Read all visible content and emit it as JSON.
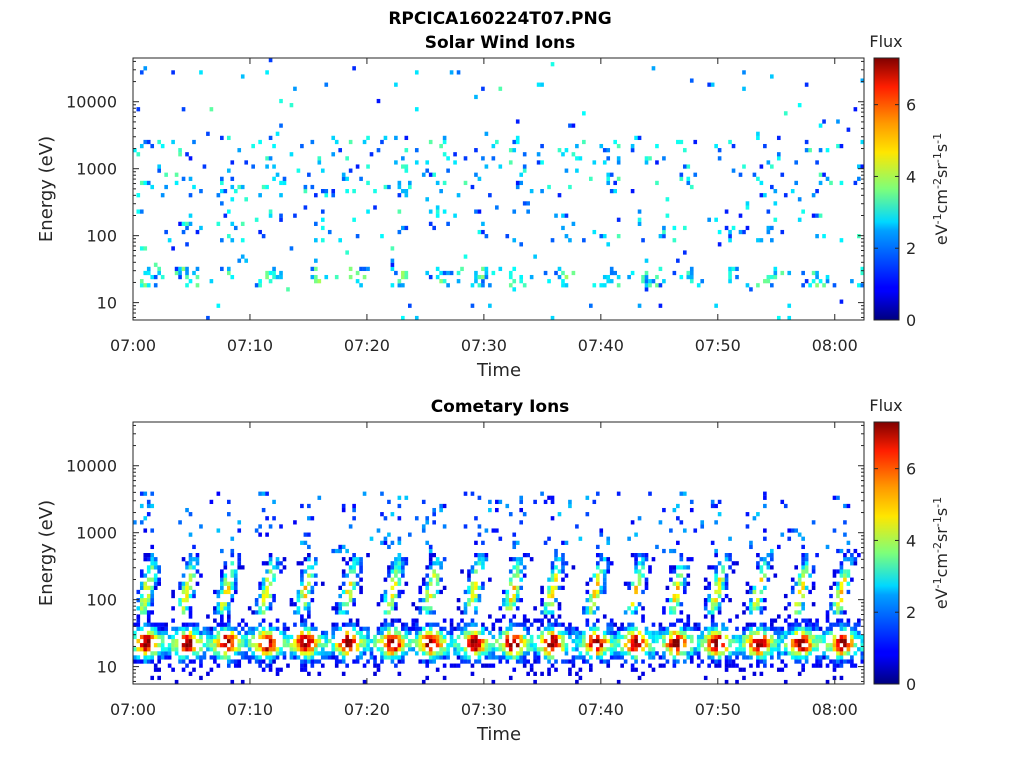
{
  "figure": {
    "title": "RPCICA160224T07.PNG"
  },
  "colormap": "jet",
  "chart_data": [
    {
      "type": "heatmap",
      "title": "Solar Wind Ions",
      "xlabel": "Time",
      "ylabel": "Energy (eV)",
      "x_ticks": [
        "07:00",
        "07:10",
        "07:20",
        "07:30",
        "07:40",
        "07:50",
        "08:00"
      ],
      "xlim_minutes": [
        0,
        62.5
      ],
      "y_scale": "log",
      "y_ticks": [
        "10",
        "100",
        "1000",
        "10000"
      ],
      "ylim": [
        5.5,
        45000
      ],
      "colorbar": {
        "title": "Flux",
        "label": "eV-1cm-2sr-1s-1",
        "ticks": [
          "0",
          "2",
          "4",
          "6"
        ],
        "range": [
          0,
          7.3
        ]
      },
      "profile": "solar",
      "seed": 7
    },
    {
      "type": "heatmap",
      "title": "Cometary Ions",
      "xlabel": "Time",
      "ylabel": "Energy (eV)",
      "x_ticks": [
        "07:00",
        "07:10",
        "07:20",
        "07:30",
        "07:40",
        "07:50",
        "08:00"
      ],
      "xlim_minutes": [
        0,
        62.5
      ],
      "y_scale": "log",
      "y_ticks": [
        "10",
        "100",
        "1000",
        "10000"
      ],
      "ylim": [
        5.5,
        45000
      ],
      "colorbar": {
        "title": "Flux",
        "label": "eV-1cm-2sr-1s-1",
        "ticks": [
          "0",
          "2",
          "4",
          "6"
        ],
        "range": [
          0,
          7.3
        ]
      },
      "profile": "cometary",
      "seed": 11
    }
  ]
}
